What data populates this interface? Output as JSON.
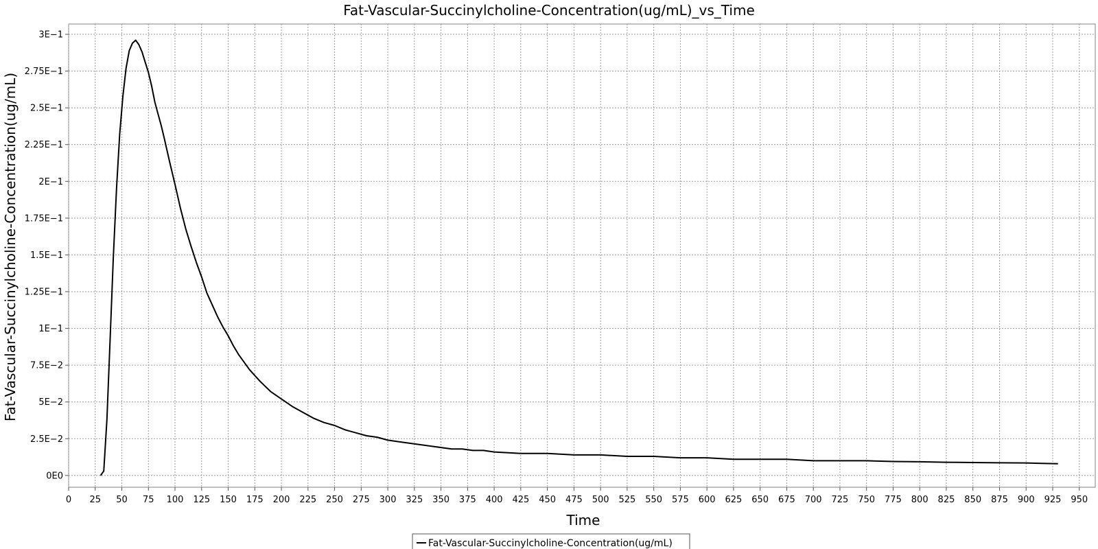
{
  "chart_data": {
    "type": "line",
    "title": "Fat-Vascular-Succinylcholine-Concentration(ug/mL)_vs_Time",
    "xlabel": "Time",
    "ylabel": "Fat-Vascular-Succinylcholine-Concentration(ug/mL)",
    "xlim": [
      0,
      965
    ],
    "ylim": [
      -0.008,
      0.307
    ],
    "x_ticks": [
      0,
      25,
      50,
      75,
      100,
      125,
      150,
      175,
      200,
      225,
      250,
      275,
      300,
      325,
      350,
      375,
      400,
      425,
      450,
      475,
      500,
      525,
      550,
      575,
      600,
      625,
      650,
      675,
      700,
      725,
      750,
      775,
      800,
      825,
      850,
      875,
      900,
      925,
      950
    ],
    "y_ticks": [
      {
        "value": 0,
        "label": "0E0"
      },
      {
        "value": 0.025,
        "label": "2.5E−2"
      },
      {
        "value": 0.05,
        "label": "5E−2"
      },
      {
        "value": 0.075,
        "label": "7.5E−2"
      },
      {
        "value": 0.1,
        "label": "1E−1"
      },
      {
        "value": 0.125,
        "label": "1.25E−1"
      },
      {
        "value": 0.15,
        "label": "1.5E−1"
      },
      {
        "value": 0.175,
        "label": "1.75E−1"
      },
      {
        "value": 0.2,
        "label": "2E−1"
      },
      {
        "value": 0.225,
        "label": "2.25E−1"
      },
      {
        "value": 0.25,
        "label": "2.5E−1"
      },
      {
        "value": 0.275,
        "label": "2.75E−1"
      },
      {
        "value": 0.3,
        "label": "3E−1"
      }
    ],
    "grid": true,
    "legend_position": "bottom-center",
    "series": [
      {
        "name": "Fat-Vascular-Succinylcholine-Concentration(ug/mL)",
        "color": "#000000",
        "x": [
          30,
          33,
          36,
          39,
          42,
          45,
          48,
          51,
          54,
          57,
          60,
          63,
          66,
          69,
          72,
          75,
          78,
          81,
          84,
          87,
          90,
          95,
          100,
          105,
          110,
          115,
          120,
          125,
          130,
          135,
          140,
          145,
          150,
          155,
          160,
          170,
          180,
          190,
          200,
          210,
          220,
          230,
          240,
          250,
          260,
          270,
          280,
          290,
          300,
          310,
          320,
          330,
          340,
          350,
          360,
          370,
          380,
          390,
          400,
          425,
          450,
          475,
          500,
          525,
          550,
          575,
          600,
          625,
          650,
          675,
          700,
          725,
          750,
          775,
          800,
          825,
          850,
          875,
          900,
          915,
          930
        ],
        "y": [
          0.0,
          0.003,
          0.038,
          0.093,
          0.148,
          0.195,
          0.232,
          0.258,
          0.277,
          0.289,
          0.294,
          0.296,
          0.293,
          0.288,
          0.281,
          0.274,
          0.265,
          0.254,
          0.246,
          0.238,
          0.229,
          0.213,
          0.198,
          0.182,
          0.168,
          0.156,
          0.145,
          0.135,
          0.124,
          0.116,
          0.108,
          0.101,
          0.095,
          0.088,
          0.082,
          0.072,
          0.064,
          0.057,
          0.052,
          0.047,
          0.043,
          0.039,
          0.036,
          0.034,
          0.031,
          0.029,
          0.027,
          0.026,
          0.024,
          0.023,
          0.022,
          0.021,
          0.02,
          0.019,
          0.018,
          0.018,
          0.017,
          0.017,
          0.016,
          0.015,
          0.015,
          0.014,
          0.014,
          0.013,
          0.013,
          0.012,
          0.012,
          0.011,
          0.011,
          0.011,
          0.01,
          0.01,
          0.01,
          0.0095,
          0.0093,
          0.009,
          0.0088,
          0.0086,
          0.0085,
          0.0082,
          0.008
        ]
      }
    ]
  }
}
